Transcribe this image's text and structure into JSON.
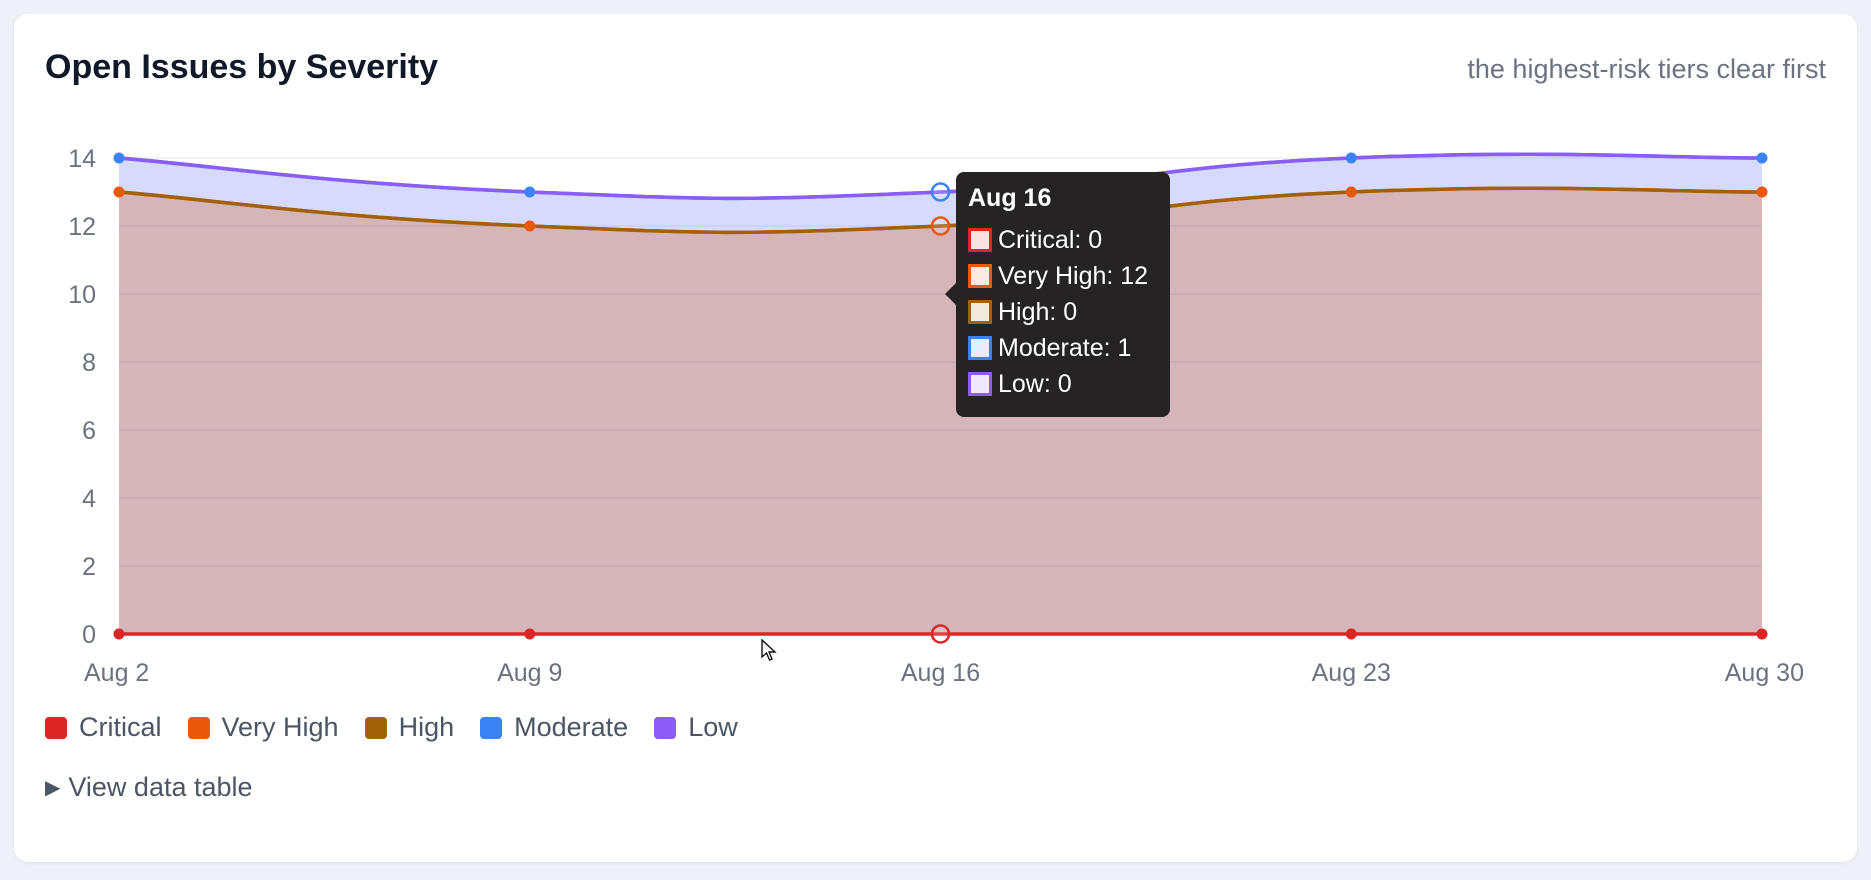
{
  "header": {
    "title": "Open Issues by Severity",
    "subtitle": "the highest-risk tiers clear first"
  },
  "legend": {
    "items": [
      {
        "label": "Critical",
        "color": "#dc2626"
      },
      {
        "label": "Very High",
        "color": "#ea580c"
      },
      {
        "label": "High",
        "color": "#a16207"
      },
      {
        "label": "Moderate",
        "color": "#3b82f6"
      },
      {
        "label": "Low",
        "color": "#8b5cf6"
      }
    ]
  },
  "table_toggle": {
    "label": "View data table"
  },
  "tooltip": {
    "title": "Aug 16",
    "rows": [
      {
        "label": "Critical: 0",
        "color": "#dc2626"
      },
      {
        "label": "Very High: 12",
        "color": "#ea580c"
      },
      {
        "label": "High: 0",
        "color": "#a16207"
      },
      {
        "label": "Moderate: 1",
        "color": "#3b82f6"
      },
      {
        "label": "Low: 0",
        "color": "#8b5cf6"
      }
    ]
  },
  "chart_data": {
    "type": "area",
    "stacked": true,
    "title": "Open Issues by Severity",
    "subtitle": "the highest-risk tiers clear first",
    "categories": [
      "Aug 2",
      "Aug 9",
      "Aug 16",
      "Aug 23",
      "Aug 30"
    ],
    "series": [
      {
        "name": "Critical",
        "color": "#dc2626",
        "values": [
          0,
          0,
          0,
          0,
          0
        ]
      },
      {
        "name": "Very High",
        "color": "#ea580c",
        "values": [
          13,
          12,
          12,
          13,
          13
        ]
      },
      {
        "name": "High",
        "color": "#a16207",
        "values": [
          0,
          0,
          0,
          0,
          0
        ]
      },
      {
        "name": "Moderate",
        "color": "#3b82f6",
        "values": [
          1,
          1,
          1,
          1,
          1
        ]
      },
      {
        "name": "Low",
        "color": "#8b5cf6",
        "values": [
          0,
          0,
          0,
          0,
          0
        ]
      }
    ],
    "ylim": [
      0,
      14
    ],
    "yticks": [
      0,
      2,
      4,
      6,
      8,
      10,
      12,
      14
    ],
    "grid": true,
    "legend": "bottom-left",
    "highlighted_category": "Aug 16"
  }
}
